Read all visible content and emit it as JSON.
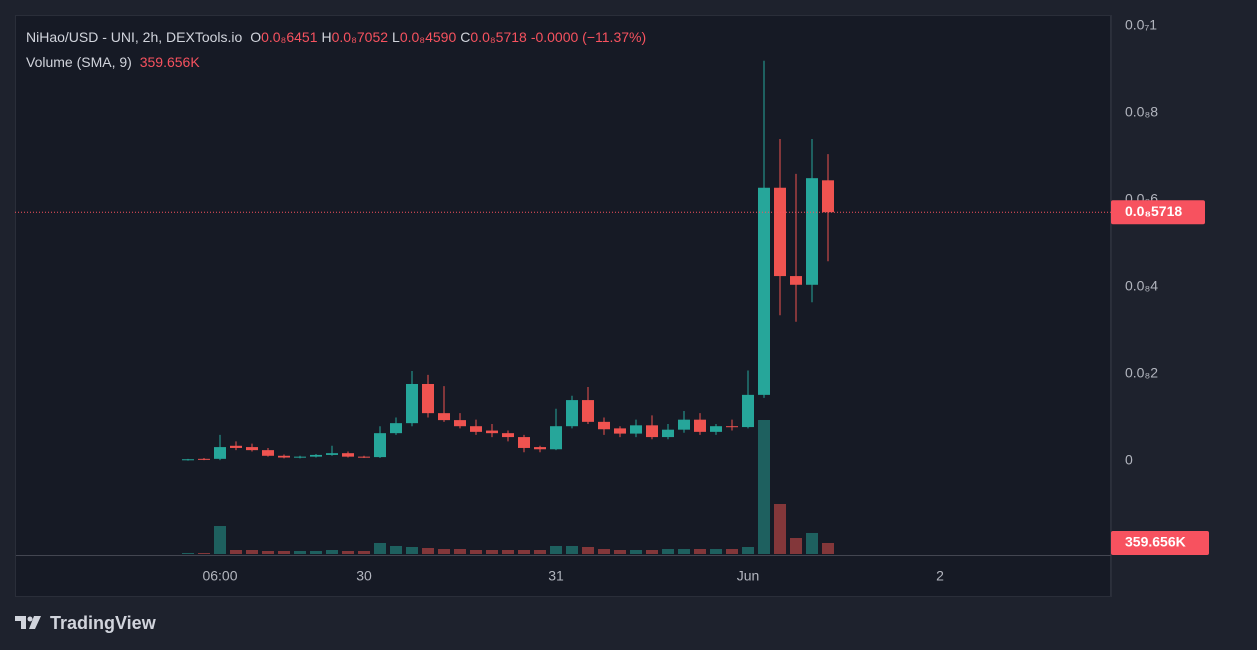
{
  "chart_data": {
    "type": "candlestick",
    "title": "NiHao/USD - UNI, 2h, DEXTools.io",
    "ohlc_legend": [
      {
        "key": "O",
        "label": "0.0₈6451"
      },
      {
        "key": "H",
        "label": "0.0₈7052"
      },
      {
        "key": "L",
        "label": "0.0₈4590"
      },
      {
        "key": "C",
        "label": "0.0₈5718"
      }
    ],
    "change_label": "-0.0000 (−11.37%)",
    "volume_title": "Volume (SMA, 9)",
    "volume_last_label": "359.656K",
    "last_price_label": "0.0₈5718",
    "watermark": "TradingView",
    "up_color": "#26a69a",
    "down_color": "#ef5350",
    "open": [
      2e-11,
      5e-11,
      5e-11,
      3.5e-10,
      3.2e-10,
      2.5e-10,
      1.2e-10,
      8e-11,
      1e-10,
      1.4e-10,
      1.8e-10,
      1e-10,
      9e-11,
      6.4e-10,
      8.7e-10,
      1.77e-09,
      1.1e-09,
      9.4e-10,
      8e-10,
      7e-10,
      6.4e-10,
      5.5e-10,
      3.2e-10,
      2.7e-10,
      8e-10,
      1.4e-09,
      9e-10,
      7.5e-10,
      6.3e-10,
      8.2e-10,
      5.5e-10,
      7.2e-10,
      9.5e-10,
      6.7e-10,
      8e-10,
      7.8e-10,
      1.52e-09,
      6.28e-09,
      4.25e-09,
      4.05e-09,
      6.451e-09
    ],
    "high": [
      5e-11,
      7e-11,
      6e-10,
      4.5e-10,
      4e-10,
      3e-10,
      1.5e-10,
      1.2e-10,
      1.6e-10,
      3.5e-10,
      2.2e-10,
      1.2e-10,
      8e-10,
      1e-09,
      2.07e-09,
      1.98e-09,
      1.72e-09,
      1.1e-09,
      9.5e-10,
      8.5e-10,
      7e-10,
      6e-10,
      3.5e-10,
      1.2e-09,
      1.5e-09,
      1.7e-09,
      1e-09,
      8e-10,
      9.5e-10,
      1.05e-09,
      8.5e-10,
      1.15e-09,
      1.1e-09,
      8.5e-10,
      9.5e-10,
      2.08e-09,
      9.2e-09,
      7.4e-09,
      6.6e-09,
      7.4e-09,
      7.052e-09
    ],
    "low": [
      1e-11,
      2e-11,
      2e-11,
      2.5e-10,
      2.2e-10,
      1e-10,
      6e-11,
      6e-11,
      8e-11,
      1.2e-10,
      8e-11,
      7e-11,
      7e-11,
      6e-10,
      8e-10,
      1e-09,
      9e-10,
      7.5e-10,
      6e-10,
      5.5e-10,
      4.5e-10,
      2e-10,
      2e-10,
      2.5e-10,
      7.5e-10,
      8.5e-10,
      6e-10,
      5.5e-10,
      5.5e-10,
      5e-10,
      5e-10,
      6.5e-10,
      6e-10,
      6e-10,
      7e-10,
      7.5e-10,
      1.45e-09,
      3.35e-09,
      3.2e-09,
      3.65e-09,
      4.59e-09
    ],
    "close": [
      4e-11,
      3e-11,
      3.2e-10,
      3e-10,
      2.5e-10,
      1.2e-10,
      8e-11,
      1e-10,
      1.4e-10,
      1.8e-10,
      1e-10,
      9e-11,
      6.4e-10,
      8.7e-10,
      1.77e-09,
      1.1e-09,
      9.4e-10,
      8e-10,
      6.7e-10,
      6.4e-10,
      5.5e-10,
      3e-10,
      2.7e-10,
      8e-10,
      1.4e-09,
      9e-10,
      7.3e-10,
      6.3e-10,
      8.2e-10,
      5.5e-10,
      7.2e-10,
      9.5e-10,
      6.7e-10,
      8e-10,
      7.8e-10,
      1.52e-09,
      6.28e-09,
      4.25e-09,
      4.05e-09,
      6.5e-09,
      5.718e-09
    ],
    "volume": [
      33000,
      33000,
      915000,
      131000,
      131000,
      98000,
      98000,
      98000,
      98000,
      131000,
      98000,
      98000,
      360000,
      262000,
      229000,
      196000,
      163000,
      163000,
      131000,
      131000,
      131000,
      131000,
      131000,
      262000,
      262000,
      229000,
      163000,
      131000,
      131000,
      131000,
      163000,
      163000,
      163000,
      163000,
      163000,
      229000,
      4381000,
      1635000,
      523000,
      687000,
      359656
    ],
    "ylim": [
      -2.16e-09,
      1.025e-08
    ],
    "yticks": [
      {
        "value": 0,
        "label": "0"
      },
      {
        "value": 2e-09,
        "label": "0.0₈2"
      },
      {
        "value": 4e-09,
        "label": "0.0₈4"
      },
      {
        "value": 6e-09,
        "label": "0.0₈6"
      },
      {
        "value": 8e-09,
        "label": "0.0₈8"
      },
      {
        "value": 1e-08,
        "label": "0.0₇1"
      }
    ],
    "xticks": [
      {
        "value": 2,
        "label": "06:00"
      },
      {
        "value": 11,
        "label": "30"
      },
      {
        "value": 23,
        "label": "31"
      },
      {
        "value": 35,
        "label": "Jun"
      },
      {
        "value": 47,
        "label": "2"
      }
    ],
    "grid": true
  }
}
